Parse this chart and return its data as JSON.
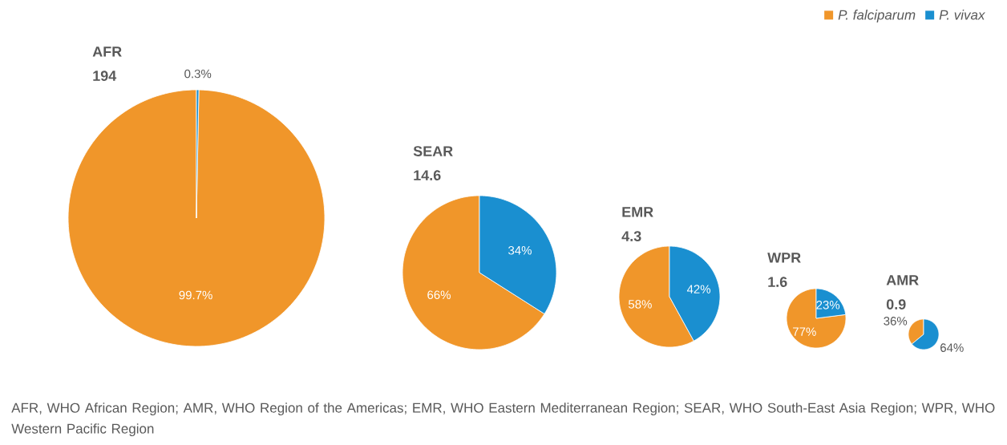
{
  "chart_data": [
    {
      "type": "pie",
      "title": "AFR",
      "subtitle": "194",
      "categories": [
        "P. falciparum",
        "P. vivax"
      ],
      "values": [
        99.7,
        0.3
      ],
      "colors": [
        "#f0962a",
        "#1a8fd0"
      ],
      "value_labels": [
        "99.7%",
        "0.3%"
      ],
      "legend": "top right",
      "annotations": [
        "AFR, WHO African Region; AMR, WHO Region of the Americas; EMR, WHO Eastern Mediterranean Region; SEAR, WHO South-East Asia Region; WPR, WHO Western Pacific Region"
      ]
    },
    {
      "type": "pie",
      "title": "SEAR",
      "subtitle": "14.6",
      "categories": [
        null,
        null
      ],
      "values": [
        66,
        34
      ],
      "colors": [
        "#f0962a",
        "#1a8fd0"
      ],
      "value_labels": [
        "66%",
        "34%"
      ]
    },
    {
      "type": "pie",
      "title": "EMR",
      "subtitle": "4.3",
      "categories": [
        null,
        null
      ],
      "values": [
        58,
        42
      ],
      "colors": [
        "#f0962a",
        "#1a8fd0"
      ],
      "value_labels": [
        "58%",
        "42%"
      ]
    },
    {
      "type": "pie",
      "title": "WPR",
      "subtitle": "1.6",
      "categories": [
        null,
        null
      ],
      "values": [
        77,
        23
      ],
      "colors": [
        "#f0962a",
        "#1a8fd0"
      ],
      "value_labels": [
        "77%",
        "23%"
      ]
    },
    {
      "type": "pie",
      "title": "AMR",
      "subtitle": "0.9",
      "categories": [
        null,
        null
      ],
      "values": [
        36,
        64
      ],
      "colors": [
        "#f0962a",
        "#1a8fd0"
      ],
      "value_labels": [
        "36%",
        "64%"
      ]
    }
  ]
}
